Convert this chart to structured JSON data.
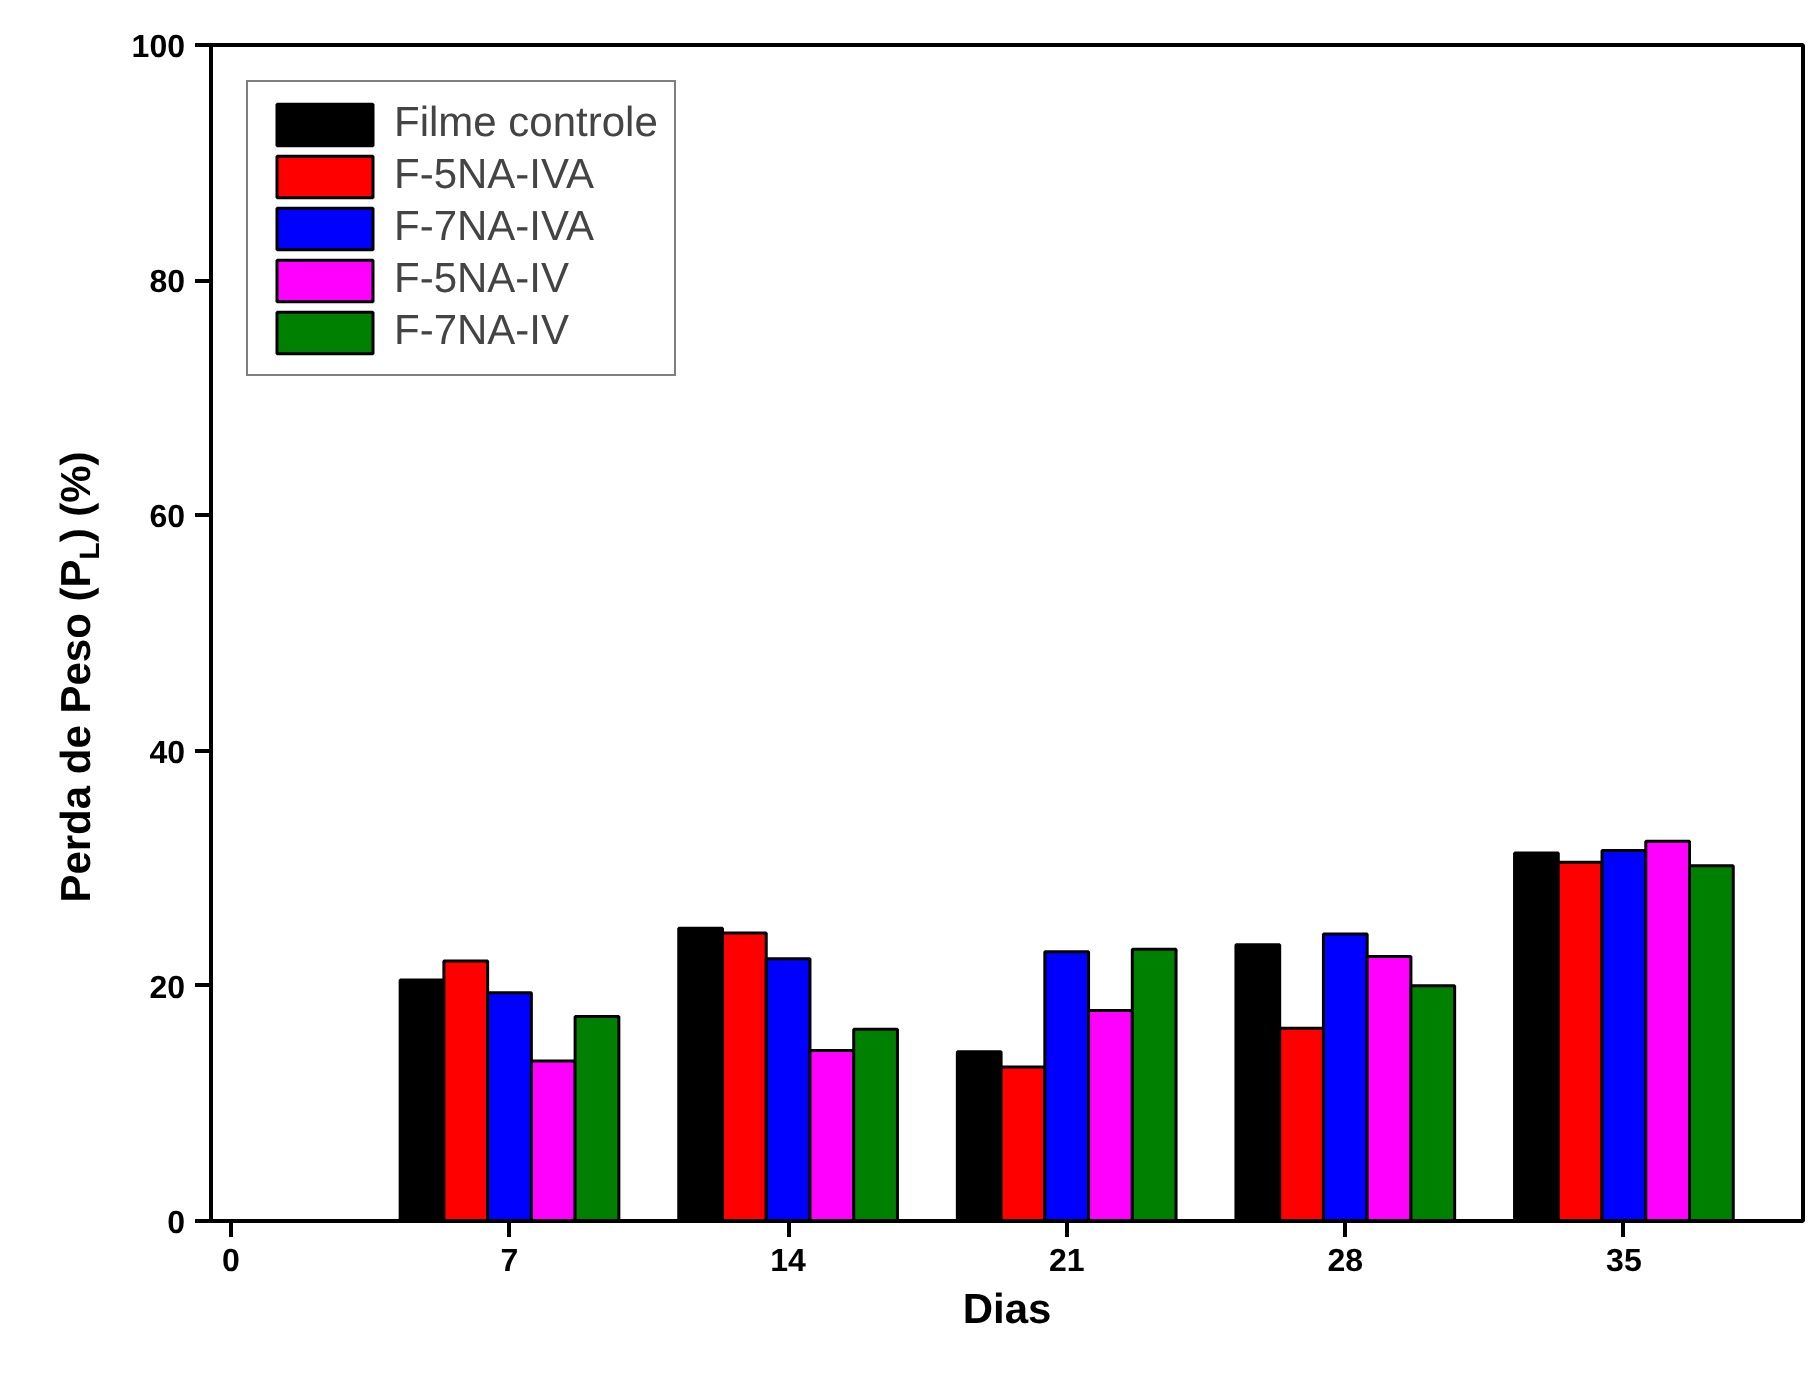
{
  "chart_data": {
    "type": "bar",
    "xlabel": "Dias",
    "ylabel": "Perda de Peso (P$_{L}$) (%)",
    "x": [
      7,
      14,
      21,
      28,
      35
    ],
    "series": [
      {
        "name": "Filme controle",
        "color": "#000000",
        "values": [
          20.5,
          24.9,
          14.4,
          23.5,
          31.3
        ]
      },
      {
        "name": "F-5NA-IVA",
        "color": "#ff0000",
        "values": [
          22.1,
          24.5,
          13.1,
          16.4,
          30.5
        ]
      },
      {
        "name": "F-7NA-IVA",
        "color": "#0000ff",
        "values": [
          19.4,
          22.3,
          22.9,
          24.4,
          31.5
        ]
      },
      {
        "name": "F-5NA-IV",
        "color": "#ff00ff",
        "values": [
          13.6,
          14.5,
          17.9,
          22.5,
          32.3
        ]
      },
      {
        "name": "F-7NA-IV",
        "color": "#008000",
        "values": [
          17.4,
          16.3,
          23.1,
          20.0,
          30.2
        ]
      }
    ],
    "xlim": [
      -0.5,
      39.5
    ],
    "xticks": [
      0,
      7,
      14,
      21,
      28,
      35
    ],
    "ylim": [
      0,
      100
    ],
    "yticks": [
      0,
      20,
      40,
      60,
      80,
      100
    ],
    "grid": false,
    "legend": "top left"
  }
}
